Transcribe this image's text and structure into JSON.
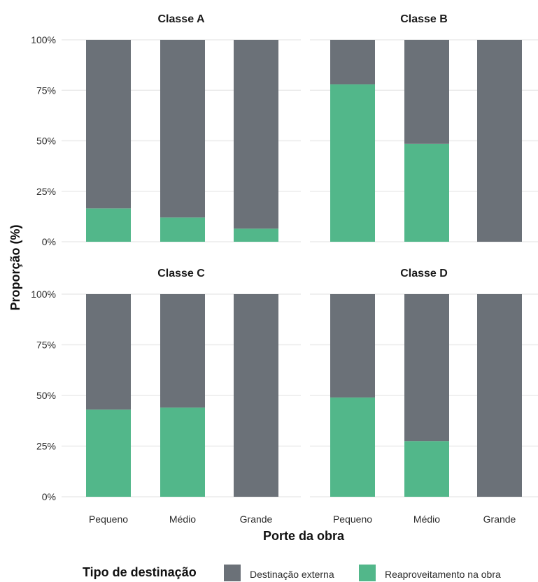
{
  "chart_data": {
    "type": "bar",
    "stacked": true,
    "xlabel": "Porte da obra",
    "ylabel": "Proporção (%)",
    "ylim": [
      0,
      100
    ],
    "yticks": [
      0,
      25,
      50,
      75,
      100
    ],
    "ytick_labels": [
      "0%",
      "25%",
      "50%",
      "75%",
      "100%"
    ],
    "categories": [
      "Pequeno",
      "Médio",
      "Grande"
    ],
    "grid": true,
    "legend": {
      "title": "Tipo de destinação",
      "position": "bottom",
      "entries": [
        {
          "name": "Destinação externa",
          "color": "#6b7178"
        },
        {
          "name": "Reaproveitamento na obra",
          "color": "#52b78a"
        }
      ]
    },
    "facets": [
      {
        "title": "Classe A",
        "series": [
          {
            "name": "Reaproveitamento na obra",
            "values": [
              16.5,
              12,
              6.5
            ]
          },
          {
            "name": "Destinação externa",
            "values": [
              83.5,
              88,
              93.5
            ]
          }
        ]
      },
      {
        "title": "Classe B",
        "series": [
          {
            "name": "Reaproveitamento na obra",
            "values": [
              78,
              48.5,
              0
            ]
          },
          {
            "name": "Destinação externa",
            "values": [
              22,
              51.5,
              100
            ]
          }
        ]
      },
      {
        "title": "Classe C",
        "series": [
          {
            "name": "Reaproveitamento na obra",
            "values": [
              43,
              44,
              0
            ]
          },
          {
            "name": "Destinação externa",
            "values": [
              57,
              56,
              100
            ]
          }
        ]
      },
      {
        "title": "Classe D",
        "series": [
          {
            "name": "Reaproveitamento na obra",
            "values": [
              49,
              27.5,
              0
            ]
          },
          {
            "name": "Destinação externa",
            "values": [
              51,
              72.5,
              100
            ]
          }
        ]
      }
    ]
  }
}
